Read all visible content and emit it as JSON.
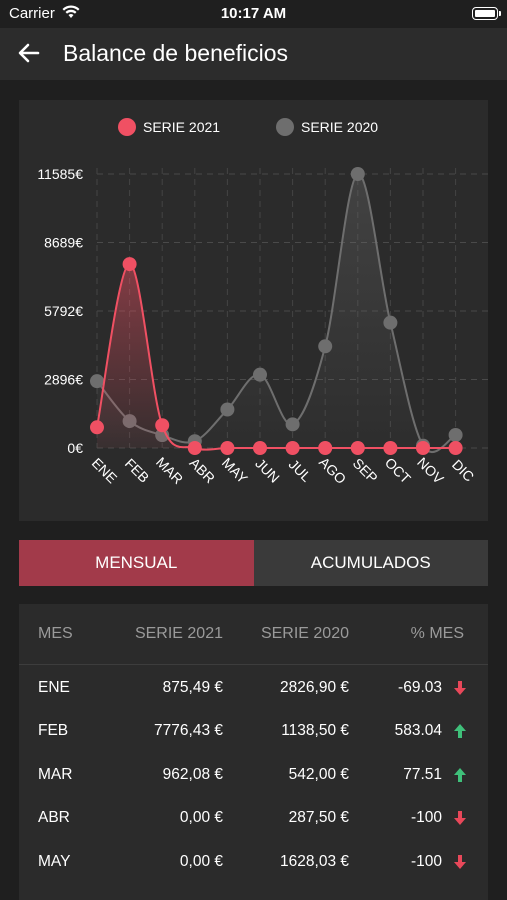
{
  "status_bar": {
    "carrier": "Carrier",
    "time": "10:17 AM"
  },
  "header": {
    "title": "Balance de beneficios",
    "back_icon": "arrow-left-icon"
  },
  "colors": {
    "serie_2021": "#f05063",
    "serie_2020": "#6e6e6e",
    "active_tab": "#a23a4a",
    "up": "#3fc07a",
    "down": "#e8485a"
  },
  "chart_data": {
    "type": "line",
    "categories": [
      "ENE",
      "FEB",
      "MAR",
      "ABR",
      "MAY",
      "JUN",
      "JUL",
      "AGO",
      "SEP",
      "OCT",
      "NOV",
      "DIC"
    ],
    "series": [
      {
        "name": "SERIE 2021",
        "values": [
          875.49,
          7776.43,
          962.08,
          0,
          0,
          0,
          0,
          0,
          0,
          0,
          0,
          0
        ]
      },
      {
        "name": "SERIE 2020",
        "values": [
          2826.9,
          1138.5,
          542.0,
          287.5,
          1628.03,
          3100,
          1000,
          4300,
          11585,
          5300,
          100,
          550
        ]
      }
    ],
    "y_ticks": [
      "0€",
      "2896€",
      "5792€",
      "8689€",
      "11585€"
    ],
    "y_tick_values": [
      0,
      2896,
      5792,
      8689,
      11585
    ],
    "ylim": [
      0,
      11585
    ],
    "grid": true,
    "legend_position": "top",
    "smooth": true,
    "area_fill": true
  },
  "tabs": {
    "mensual": "MENSUAL",
    "acumulados": "ACUMULADOS",
    "active": "mensual"
  },
  "table": {
    "headers": {
      "mes": "MES",
      "s2021": "SERIE 2021",
      "s2020": "SERIE 2020",
      "pct": "% MES"
    },
    "rows": [
      {
        "mes": "ENE",
        "s2021": "875,49 €",
        "s2020": "2826,90 €",
        "pct": "-69.03",
        "trend": "down"
      },
      {
        "mes": "FEB",
        "s2021": "7776,43 €",
        "s2020": "1138,50 €",
        "pct": "583.04",
        "trend": "up"
      },
      {
        "mes": "MAR",
        "s2021": "962,08 €",
        "s2020": "542,00 €",
        "pct": "77.51",
        "trend": "up"
      },
      {
        "mes": "ABR",
        "s2021": "0,00 €",
        "s2020": "287,50 €",
        "pct": "-100",
        "trend": "down"
      },
      {
        "mes": "MAY",
        "s2021": "0,00 €",
        "s2020": "1628,03 €",
        "pct": "-100",
        "trend": "down"
      }
    ]
  }
}
